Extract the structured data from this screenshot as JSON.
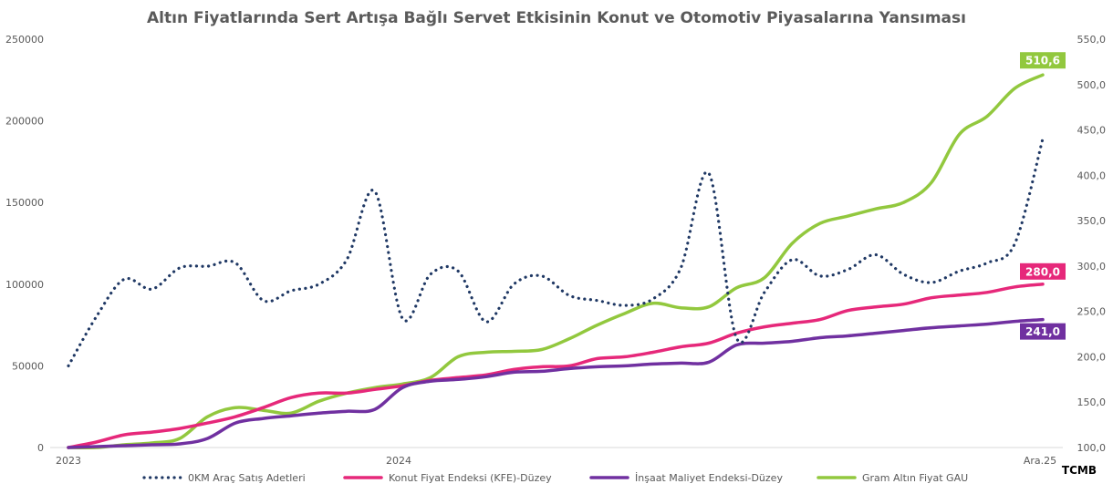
{
  "chart_data": {
    "type": "line",
    "title": "Altın Fiyatlarında Sert Artışa Bağlı Servet Etkisinin Konut ve Otomotiv Piyasalarına Yansıması",
    "source": "TCMB",
    "x_tick_labels": [
      "2023",
      "2024",
      "Ara.25"
    ],
    "n_points": 36,
    "y_left": {
      "min": 0,
      "max": 250000,
      "ticks": [
        0,
        50000,
        100000,
        150000,
        200000,
        250000
      ],
      "tick_labels": [
        "0",
        "50000",
        "100000",
        "150000",
        "200000",
        "250000"
      ]
    },
    "y_right": {
      "min": 100,
      "max": 550,
      "ticks": [
        100,
        150,
        200,
        250,
        300,
        350,
        400,
        450,
        500,
        550
      ],
      "tick_labels": [
        "100,0",
        "150,0",
        "200,0",
        "250,0",
        "300,0",
        "350,0",
        "400,0",
        "450,0",
        "500,0",
        "550,0"
      ]
    },
    "grid": false,
    "legend_position": "bottom",
    "series": [
      {
        "name": "0KM Araç Satış Adetleri",
        "axis": "left",
        "color": "#1f3864",
        "style": "dotted",
        "values": [
          50000,
          80000,
          103000,
          97000,
          110000,
          111000,
          113000,
          90000,
          96000,
          100000,
          115000,
          157000,
          79000,
          106000,
          108000,
          77000,
          100000,
          105000,
          93000,
          90000,
          87000,
          91000,
          110000,
          168000,
          67000,
          95000,
          115000,
          105000,
          109000,
          118000,
          106000,
          101000,
          108000,
          113000,
          125000,
          189000
        ]
      },
      {
        "name": "Konut Fiyat Endeksi (KFE)-Düzey",
        "axis": "right",
        "color": "#e6287a",
        "style": "solid",
        "values": [
          100,
          106,
          114,
          117,
          121,
          127,
          134,
          144,
          155,
          160,
          160,
          164,
          168,
          174,
          177,
          180,
          186,
          189,
          190,
          198,
          200,
          205,
          211,
          215,
          226,
          233,
          237,
          241,
          251,
          255,
          258,
          265,
          268,
          271,
          277,
          280
        ]
      },
      {
        "name": "İnşaat Maliyet Endeksi-Düzey",
        "axis": "right",
        "color": "#7030a0",
        "style": "solid",
        "values": [
          100,
          101,
          102,
          103,
          104,
          110,
          127,
          132,
          135,
          138,
          140,
          142,
          166,
          173,
          175,
          178,
          183,
          184,
          187,
          189,
          190,
          192,
          193,
          194,
          213,
          215,
          217,
          221,
          223,
          226,
          229,
          232,
          234,
          236,
          239,
          241
        ]
      },
      {
        "name": "Gram Altın Fiyat GAU",
        "axis": "right",
        "color": "#92c83e",
        "style": "solid",
        "values": [
          100,
          100,
          103,
          105,
          110,
          134,
          144,
          141,
          138,
          151,
          160,
          166,
          170,
          177,
          200,
          205,
          206,
          208,
          220,
          235,
          248,
          259,
          254,
          255,
          276,
          287,
          325,
          347,
          355,
          363,
          370,
          392,
          445,
          465,
          496,
          510.6
        ]
      }
    ],
    "end_labels": [
      {
        "series": "Gram Altın Fiyat GAU",
        "text": "510,6",
        "value": 510.6,
        "color": "#92c83e"
      },
      {
        "series": "Konut Fiyat Endeksi (KFE)-Düzey",
        "text": "280,0",
        "value": 280,
        "color": "#e6287a"
      },
      {
        "series": "İnşaat Maliyet Endeksi-Düzey",
        "text": "241,0",
        "value": 241,
        "color": "#7030a0"
      }
    ]
  }
}
